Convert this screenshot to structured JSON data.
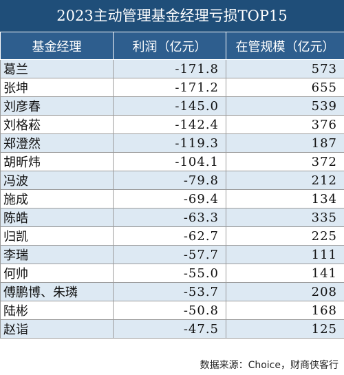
{
  "title": "2023主动管理基金经理亏损TOP15",
  "headers": [
    "基金经理",
    "利润（亿元）",
    "在管规模（亿元）"
  ],
  "rows": [
    {
      "name": "葛兰",
      "profit": "-171.8",
      "aum": "573"
    },
    {
      "name": "张坤",
      "profit": "-171.2",
      "aum": "655"
    },
    {
      "name": "刘彦春",
      "profit": "-145.0",
      "aum": "539"
    },
    {
      "name": "刘格菘",
      "profit": "-142.4",
      "aum": "376"
    },
    {
      "name": "郑澄然",
      "profit": "-119.3",
      "aum": "187"
    },
    {
      "name": "胡昕炜",
      "profit": "-104.1",
      "aum": "372"
    },
    {
      "name": "冯波",
      "profit": "-79.8",
      "aum": "212"
    },
    {
      "name": "施成",
      "profit": "-69.4",
      "aum": "134"
    },
    {
      "name": "陈皓",
      "profit": "-63.3",
      "aum": "335"
    },
    {
      "name": "归凯",
      "profit": "-62.7",
      "aum": "225"
    },
    {
      "name": "李瑞",
      "profit": "-57.7",
      "aum": "111"
    },
    {
      "name": "何帅",
      "profit": "-55.0",
      "aum": "141"
    },
    {
      "name": "傅鹏博、朱璘",
      "profit": "-53.7",
      "aum": "208"
    },
    {
      "name": "陆彬",
      "profit": "-50.8",
      "aum": "168"
    },
    {
      "name": "赵诣",
      "profit": "-47.5",
      "aum": "125"
    }
  ],
  "source": "数据来源：Choice，财商侠客行",
  "colors": {
    "title_bg": "#1f4e79",
    "header_bg": "#2e5e8e",
    "stripe": "#dde9f3"
  }
}
